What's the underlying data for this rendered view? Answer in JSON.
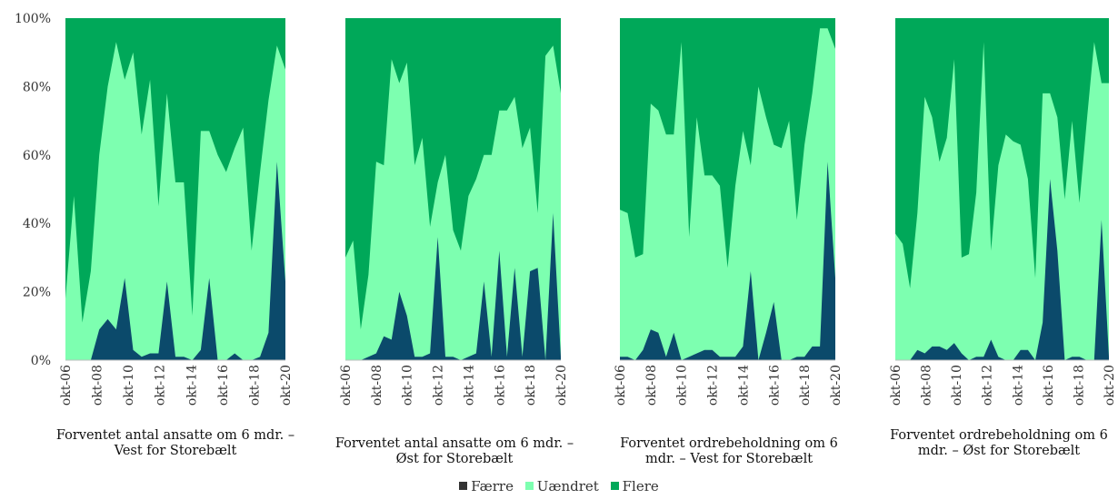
{
  "chart_data": {
    "type": "area",
    "stacked": true,
    "percent": true,
    "y_ticks": [
      "0%",
      "20%",
      "40%",
      "60%",
      "80%",
      "100%"
    ],
    "ylim": [
      0,
      100
    ],
    "x_ticks": [
      "okt-06",
      "okt-08",
      "okt-10",
      "okt-12",
      "okt-14",
      "okt-16",
      "okt-18",
      "okt-20"
    ],
    "colors": {
      "Færre": "#0b4a6b",
      "Uændret": "#7dffb0",
      "Flere": "#00a859"
    },
    "legend": [
      "Færre",
      "Uændret",
      "Flere"
    ],
    "legend_position": "bottom",
    "panels": [
      {
        "title": "Forventet antal ansatte om 6 mdr. – Vest for Storebælt",
        "x_start": "okt-06",
        "x_end": "okt-20",
        "faerre": [
          0,
          0,
          0,
          0,
          9,
          12,
          9,
          24,
          3,
          1,
          2,
          2,
          23,
          1,
          1,
          0,
          3,
          24,
          0,
          0,
          2,
          0,
          0,
          1,
          8,
          58,
          23
        ],
        "uaendret": [
          18,
          48,
          11,
          26,
          51,
          68,
          84,
          58,
          87,
          65,
          80,
          43,
          55,
          51,
          51,
          13,
          64,
          43,
          60,
          55,
          60,
          68,
          32,
          54,
          68,
          34,
          62
        ]
      },
      {
        "title": "Forventet antal ansatte om 6 mdr. – Øst for Storebælt",
        "x_start": "okt-06",
        "x_end": "okt-20",
        "faerre": [
          0,
          0,
          0,
          1,
          2,
          7,
          6,
          20,
          13,
          1,
          1,
          2,
          36,
          1,
          1,
          0,
          1,
          2,
          23,
          1,
          32,
          1,
          27,
          1,
          26,
          27,
          0,
          43,
          1
        ],
        "uaendret": [
          30,
          35,
          9,
          24,
          56,
          50,
          82,
          61,
          74,
          56,
          64,
          37,
          16,
          59,
          37,
          32,
          47,
          51,
          37,
          59,
          41,
          72,
          50,
          61,
          42,
          16,
          89,
          49,
          77
        ]
      },
      {
        "title": "Forventet ordrebeholdning om 6 mdr. – Vest for Storebælt",
        "x_start": "okt-06",
        "x_end": "okt-20",
        "faerre": [
          1,
          1,
          0,
          3,
          9,
          8,
          1,
          8,
          0,
          1,
          2,
          3,
          3,
          1,
          1,
          1,
          4,
          26,
          0,
          8,
          17,
          0,
          0,
          1,
          1,
          4,
          4,
          58,
          24
        ],
        "uaendret": [
          43,
          42,
          30,
          28,
          66,
          65,
          65,
          58,
          93,
          35,
          69,
          51,
          51,
          50,
          26,
          50,
          63,
          31,
          80,
          63,
          46,
          62,
          70,
          40,
          62,
          74,
          93,
          39,
          67
        ]
      },
      {
        "title": "Forventet ordrebeholdning om 6 mdr. – Øst for Storebælt",
        "x_start": "okt-06",
        "x_end": "okt-20",
        "faerre": [
          0,
          0,
          0,
          3,
          2,
          4,
          4,
          3,
          5,
          2,
          0,
          1,
          1,
          6,
          1,
          0,
          0,
          3,
          3,
          0,
          11,
          53,
          32,
          0,
          1,
          1,
          0,
          0,
          41,
          1
        ],
        "uaendret": [
          37,
          34,
          21,
          40,
          75,
          67,
          54,
          62,
          83,
          28,
          31,
          48,
          92,
          26,
          56,
          66,
          64,
          60,
          50,
          24,
          67,
          25,
          39,
          47,
          69,
          45,
          70,
          93,
          40,
          80
        ]
      }
    ]
  }
}
